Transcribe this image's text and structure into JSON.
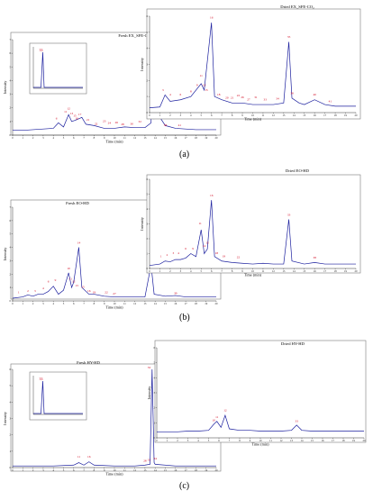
{
  "panel_labels": [
    "(a)",
    "(b)",
    "(c)"
  ],
  "chart_data": [
    {
      "type": "line",
      "title": "Fresh EX_SFE-CO₂",
      "xlabel": "Time (min)",
      "ylabel": "Intensity",
      "xlim": [
        0,
        20
      ],
      "ylim": [
        0,
        7
      ],
      "xticks": [
        "0",
        "1",
        "2",
        "3",
        "4",
        "5",
        "6",
        "7",
        "8",
        "9",
        "10",
        "11",
        "12",
        "13",
        "14",
        "15",
        "16",
        "17",
        "18",
        "19",
        "20"
      ],
      "yticks": [
        "0",
        "1",
        "2",
        "3",
        "4",
        "5",
        "6",
        "7"
      ],
      "series": [
        {
          "values": [
            [
              0,
              0.35
            ],
            [
              1,
              0.35
            ],
            [
              2,
              0.4
            ],
            [
              3,
              0.45
            ],
            [
              4,
              0.5
            ],
            [
              4.5,
              0.9
            ],
            [
              5,
              0.6
            ],
            [
              5.5,
              1.5
            ],
            [
              5.8,
              1.0
            ],
            [
              6.2,
              1.1
            ],
            [
              6.8,
              1.3
            ],
            [
              7.2,
              0.8
            ],
            [
              8,
              0.7
            ],
            [
              9,
              0.5
            ],
            [
              10,
              0.5
            ],
            [
              11,
              0.6
            ],
            [
              12,
              0.55
            ],
            [
              13,
              0.55
            ],
            [
              13.6,
              0.9
            ],
            [
              13.75,
              7.0
            ],
            [
              13.9,
              1.2
            ],
            [
              14.3,
              1.5
            ],
            [
              15,
              0.7
            ],
            [
              16,
              0.5
            ],
            [
              17,
              0.45
            ],
            [
              18,
              0.4
            ],
            [
              19,
              0.4
            ],
            [
              20,
              0.4
            ]
          ]
        }
      ],
      "peak_labels": [
        "6",
        "11",
        "12",
        "13",
        "15",
        "16",
        "17",
        "21",
        "22",
        "23",
        "24",
        "26",
        "28",
        "30",
        "32",
        "33",
        "36",
        "38",
        "41"
      ]
    },
    {
      "type": "line",
      "title": "Fresh EX_SFE-CO₂ (inset)",
      "xlabel": "Time (min)",
      "ylabel": "",
      "peak_labels": [
        "33"
      ]
    },
    {
      "type": "line",
      "title": "Dried EX_SFE-CO₂",
      "xlabel": "Time (min)",
      "ylabel": "Intensity",
      "xlim": [
        0,
        20
      ],
      "ylim": [
        0,
        6
      ],
      "xticks": [
        "0",
        "1",
        "2",
        "3",
        "4",
        "5",
        "6",
        "7",
        "8",
        "9",
        "10",
        "11",
        "12",
        "13",
        "14",
        "15",
        "16",
        "17",
        "18",
        "19",
        "20"
      ],
      "yticks": [
        "0",
        "1",
        "2",
        "3",
        "4",
        "5",
        "6"
      ],
      "series": [
        {
          "values": [
            [
              0,
              0.3
            ],
            [
              1,
              0.35
            ],
            [
              1.5,
              1.1
            ],
            [
              2,
              0.7
            ],
            [
              3,
              0.8
            ],
            [
              4,
              1.0
            ],
            [
              5,
              1.8
            ],
            [
              5.3,
              1.4
            ],
            [
              6,
              5.6
            ],
            [
              6.3,
              1.0
            ],
            [
              7,
              0.8
            ],
            [
              8,
              0.6
            ],
            [
              9,
              0.6
            ],
            [
              10,
              0.5
            ],
            [
              11,
              0.5
            ],
            [
              12,
              0.5
            ],
            [
              13,
              0.6
            ],
            [
              13.5,
              4.4
            ],
            [
              13.8,
              0.9
            ],
            [
              14.5,
              0.6
            ],
            [
              15,
              0.5
            ],
            [
              16,
              0.8
            ],
            [
              17,
              0.5
            ],
            [
              18,
              0.4
            ],
            [
              19,
              0.4
            ],
            [
              20,
              0.4
            ]
          ]
        }
      ],
      "peak_labels": [
        "3",
        "4",
        "6",
        "8",
        "9",
        "11",
        "13",
        "15",
        "16",
        "18",
        "20",
        "21",
        "22",
        "26",
        "27",
        "31",
        "33",
        "34",
        "35",
        "38",
        "40",
        "41"
      ]
    },
    {
      "type": "line",
      "title": "Fresh EO-HD",
      "xlabel": "Time (min)",
      "ylabel": "Intensity",
      "xlim": [
        0,
        20
      ],
      "ylim": [
        0,
        7
      ],
      "xticks": [
        "0",
        "1",
        "2",
        "3",
        "4",
        "5",
        "6",
        "7",
        "8",
        "9",
        "10",
        "11",
        "12",
        "13",
        "14",
        "15",
        "16",
        "17",
        "18",
        "19",
        "20"
      ],
      "yticks": [
        "0",
        "1",
        "2",
        "3",
        "4",
        "5",
        "6",
        "7"
      ],
      "series": [
        {
          "values": [
            [
              0,
              0.2
            ],
            [
              1,
              0.3
            ],
            [
              1.5,
              0.45
            ],
            [
              2,
              0.35
            ],
            [
              2.5,
              0.5
            ],
            [
              3,
              0.5
            ],
            [
              3.5,
              0.7
            ],
            [
              4,
              1.1
            ],
            [
              4.5,
              0.5
            ],
            [
              5,
              0.8
            ],
            [
              5.5,
              2.1
            ],
            [
              5.8,
              1.0
            ],
            [
              6,
              1.4
            ],
            [
              6.5,
              4.0
            ],
            [
              6.8,
              1.0
            ],
            [
              7.5,
              0.5
            ],
            [
              8,
              0.5
            ],
            [
              9,
              0.35
            ],
            [
              10,
              0.3
            ],
            [
              11,
              0.3
            ],
            [
              12,
              0.3
            ],
            [
              13,
              0.3
            ],
            [
              13.6,
              2.7
            ],
            [
              13.9,
              0.5
            ],
            [
              15,
              0.35
            ],
            [
              16,
              0.4
            ],
            [
              17,
              0.3
            ],
            [
              18,
              0.3
            ],
            [
              19,
              0.3
            ],
            [
              20,
              0.3
            ]
          ]
        }
      ],
      "peak_labels": [
        "1",
        "2",
        "3",
        "4",
        "6",
        "9",
        "10",
        "11",
        "12",
        "13",
        "14",
        "15",
        "16",
        "19",
        "22",
        "27",
        "33",
        "39"
      ]
    },
    {
      "type": "line",
      "title": "Dried EO-HD",
      "xlabel": "Time (min)",
      "ylabel": "Intensity",
      "xlim": [
        0,
        20
      ],
      "ylim": [
        0,
        6
      ],
      "xticks": [
        "0",
        "1",
        "2",
        "3",
        "4",
        "5",
        "6",
        "7",
        "8",
        "9",
        "10",
        "11",
        "12",
        "13",
        "14",
        "15",
        "16",
        "17",
        "18",
        "19",
        "20"
      ],
      "yticks": [
        "0",
        "1",
        "2",
        "3",
        "4",
        "5",
        "6"
      ],
      "series": [
        {
          "values": [
            [
              0,
              0.2
            ],
            [
              1,
              0.3
            ],
            [
              1.5,
              0.5
            ],
            [
              2,
              0.45
            ],
            [
              2.5,
              0.6
            ],
            [
              3,
              0.6
            ],
            [
              3.5,
              0.7
            ],
            [
              4,
              1.0
            ],
            [
              4.5,
              0.8
            ],
            [
              5,
              2.6
            ],
            [
              5.3,
              1.0
            ],
            [
              5.6,
              1.3
            ],
            [
              6,
              4.6
            ],
            [
              6.3,
              0.8
            ],
            [
              7,
              0.5
            ],
            [
              8,
              0.4
            ],
            [
              9,
              0.35
            ],
            [
              10,
              0.3
            ],
            [
              11,
              0.35
            ],
            [
              12,
              0.3
            ],
            [
              13,
              0.3
            ],
            [
              13.5,
              3.3
            ],
            [
              13.8,
              0.5
            ],
            [
              15,
              0.3
            ],
            [
              16,
              0.4
            ],
            [
              17,
              0.3
            ],
            [
              18,
              0.3
            ],
            [
              19,
              0.3
            ],
            [
              20,
              0.3
            ]
          ]
        }
      ],
      "peak_labels": [
        "1",
        "2",
        "3",
        "4",
        "6",
        "9",
        "11",
        "14",
        "15",
        "16",
        "18",
        "19",
        "22",
        "33",
        "38"
      ]
    },
    {
      "type": "line",
      "title": "Fresh HY-HD",
      "xlabel": "Time (min)",
      "ylabel": "Intensity",
      "xlim": [
        0,
        20
      ],
      "ylim": [
        0,
        6
      ],
      "xticks": [
        "0",
        "1",
        "2",
        "3",
        "4",
        "5",
        "6",
        "7",
        "8",
        "9",
        "10",
        "11",
        "12",
        "13",
        "14",
        "15",
        "16",
        "17",
        "18",
        "19",
        "20"
      ],
      "yticks": [
        "0",
        "1",
        "2",
        "3",
        "4",
        "5",
        "6"
      ],
      "series": [
        {
          "values": [
            [
              0,
              0.1
            ],
            [
              2,
              0.1
            ],
            [
              4,
              0.1
            ],
            [
              6,
              0.15
            ],
            [
              6.5,
              0.3
            ],
            [
              7,
              0.15
            ],
            [
              7.5,
              0.35
            ],
            [
              8,
              0.15
            ],
            [
              10,
              0.1
            ],
            [
              12,
              0.1
            ],
            [
              13,
              0.15
            ],
            [
              13.5,
              0.2
            ],
            [
              13.7,
              6.0
            ],
            [
              13.9,
              0.3
            ],
            [
              14,
              0.2
            ],
            [
              16,
              0.1
            ],
            [
              18,
              0.1
            ],
            [
              20,
              0.1
            ]
          ]
        }
      ],
      "peak_labels": [
        "33",
        "11",
        "16",
        "28",
        "31",
        "34"
      ]
    },
    {
      "type": "line",
      "title": "Fresh HY-HD (inset)",
      "xlabel": "",
      "ylabel": "",
      "peak_labels": [
        "33"
      ]
    },
    {
      "type": "line",
      "title": "Dried HY-HD",
      "xlabel": "Time (min)",
      "ylabel": "Intensity",
      "xlim": [
        0,
        20
      ],
      "ylim": [
        0,
        6
      ],
      "xticks": [
        "0",
        "1",
        "2",
        "3",
        "4",
        "5",
        "6",
        "7",
        "8",
        "9",
        "10",
        "11",
        "12",
        "13",
        "14",
        "15",
        "16",
        "17",
        "18",
        "19",
        "20"
      ],
      "yticks": [
        "0",
        "1",
        "2",
        "3",
        "4",
        "5",
        "6"
      ],
      "series": [
        {
          "values": [
            [
              0,
              0.4
            ],
            [
              1,
              0.4
            ],
            [
              2,
              0.4
            ],
            [
              3,
              0.45
            ],
            [
              4,
              0.45
            ],
            [
              5,
              0.5
            ],
            [
              5.5,
              0.9
            ],
            [
              5.8,
              1.1
            ],
            [
              6.2,
              0.7
            ],
            [
              6.6,
              1.5
            ],
            [
              7,
              0.6
            ],
            [
              8,
              0.5
            ],
            [
              9,
              0.5
            ],
            [
              10,
              0.45
            ],
            [
              11,
              0.45
            ],
            [
              12,
              0.45
            ],
            [
              13,
              0.5
            ],
            [
              13.5,
              0.85
            ],
            [
              14,
              0.5
            ],
            [
              15,
              0.45
            ],
            [
              16,
              0.45
            ],
            [
              17,
              0.45
            ],
            [
              18,
              0.45
            ],
            [
              19,
              0.45
            ],
            [
              20,
              0.45
            ]
          ]
        }
      ],
      "peak_labels": [
        "10",
        "11",
        "12",
        "33"
      ]
    }
  ]
}
